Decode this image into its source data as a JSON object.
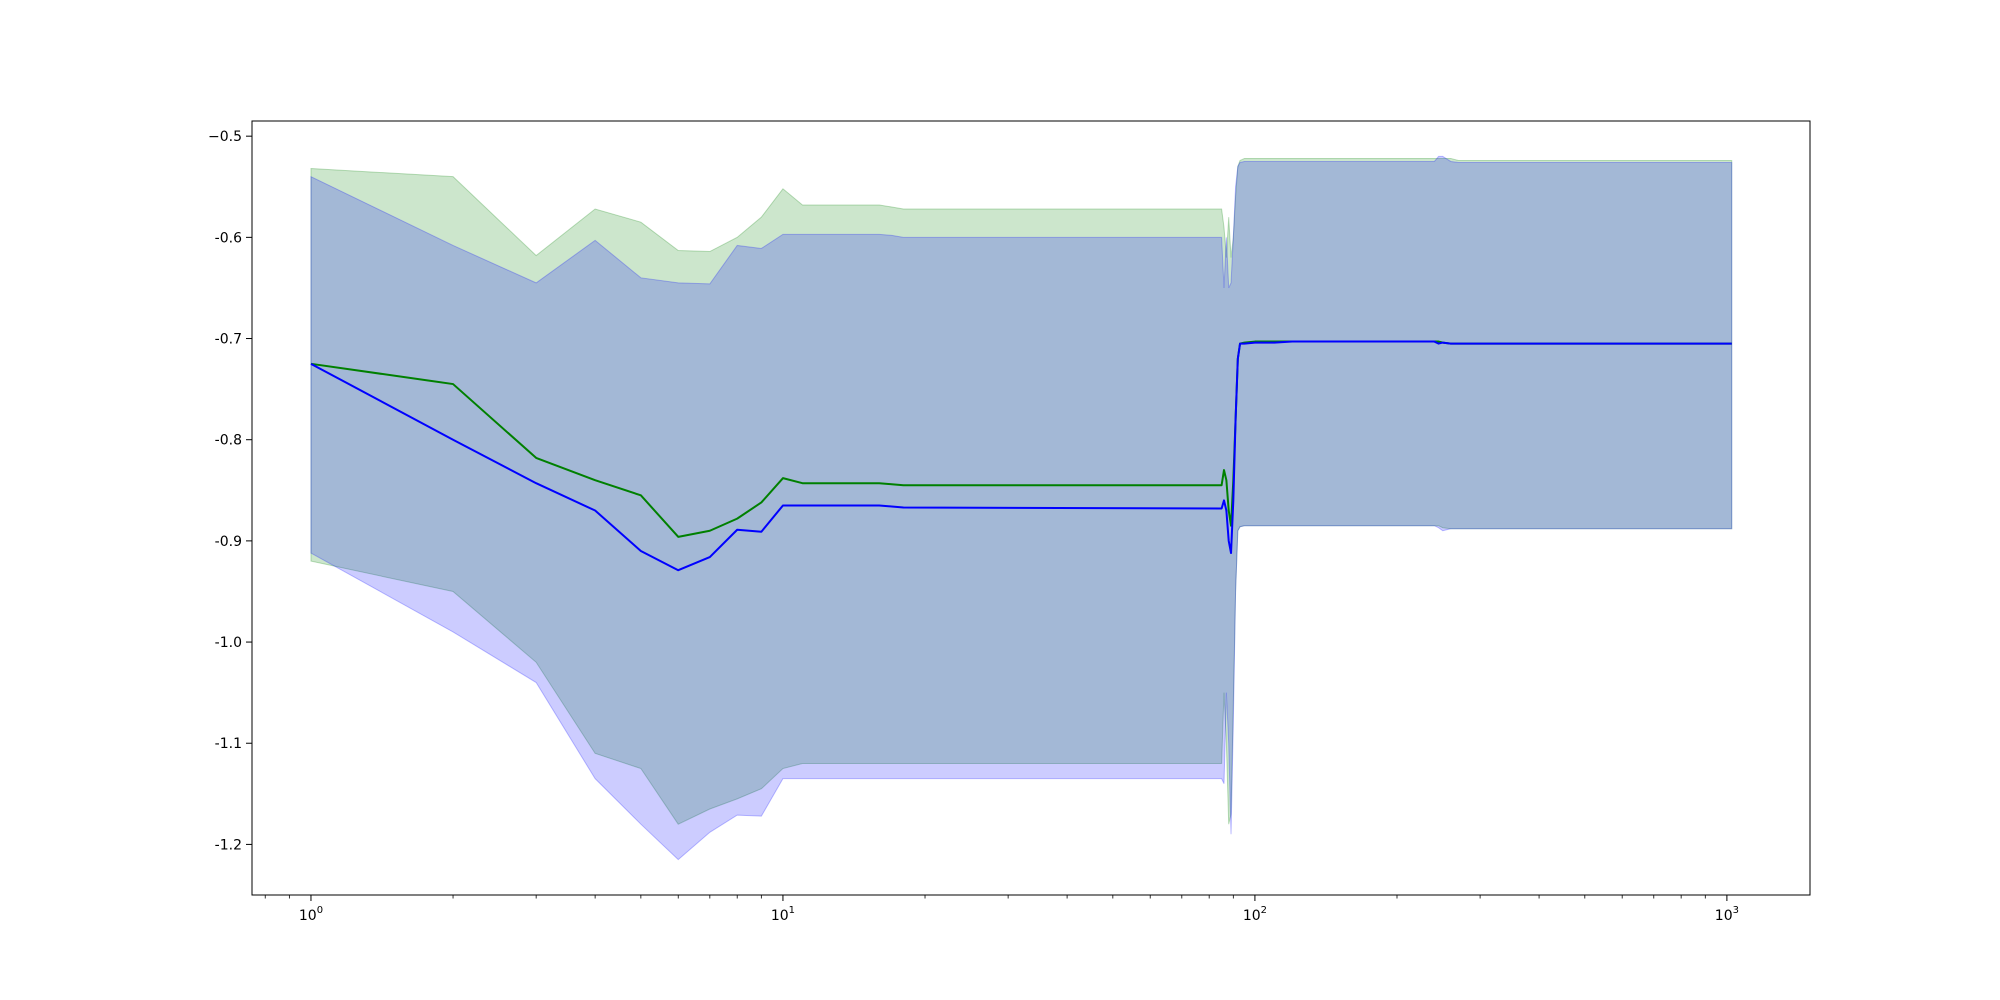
{
  "chart_data": {
    "type": "line",
    "xscale": "log",
    "xlim": [
      0.75,
      1500
    ],
    "ylim": [
      -1.25,
      -0.485
    ],
    "grid": false,
    "legend": "none",
    "y_ticks": [
      -0.5,
      -0.6,
      -0.7,
      -0.8,
      -0.9,
      -1.0,
      -1.1,
      -1.2
    ],
    "y_tick_labels": [
      "−0.5",
      "-0.6",
      "-0.7",
      "-0.8",
      "-0.9",
      "-1.0",
      "-1.1",
      "-1.2"
    ],
    "x_ticks": [
      {
        "value": 1,
        "base": "10",
        "exp": "0"
      },
      {
        "value": 10,
        "base": "10",
        "exp": "1"
      },
      {
        "value": 100,
        "base": "10",
        "exp": "2"
      },
      {
        "value": 1000,
        "base": "10",
        "exp": "3"
      }
    ],
    "series": [
      {
        "color": "#008000",
        "band_color": "#008000",
        "band_opacity": 0.2,
        "x": [
          1,
          2,
          3,
          4,
          5,
          6,
          7,
          8,
          9,
          10,
          11,
          16,
          17,
          18,
          85,
          86,
          87,
          88,
          89,
          90,
          91,
          92,
          93,
          95,
          100,
          110,
          120,
          200,
          240,
          245,
          250,
          260,
          270,
          1024
        ],
        "mean": [
          -0.725,
          -0.745,
          -0.818,
          -0.84,
          -0.855,
          -0.896,
          -0.89,
          -0.878,
          -0.862,
          -0.838,
          -0.843,
          -0.843,
          -0.844,
          -0.845,
          -0.845,
          -0.83,
          -0.84,
          -0.87,
          -0.885,
          -0.84,
          -0.78,
          -0.72,
          -0.705,
          -0.704,
          -0.703,
          -0.703,
          -0.703,
          -0.703,
          -0.703,
          -0.703,
          -0.704,
          -0.705,
          -0.705,
          -0.705
        ],
        "upper": [
          -0.532,
          -0.54,
          -0.618,
          -0.572,
          -0.585,
          -0.613,
          -0.614,
          -0.6,
          -0.58,
          -0.552,
          -0.568,
          -0.568,
          -0.57,
          -0.572,
          -0.572,
          -0.59,
          -0.62,
          -0.58,
          -0.62,
          -0.6,
          -0.56,
          -0.53,
          -0.524,
          -0.522,
          -0.522,
          -0.522,
          -0.522,
          -0.522,
          -0.522,
          -0.522,
          -0.522,
          -0.522,
          -0.524,
          -0.524
        ],
        "lower": [
          -0.92,
          -0.95,
          -1.02,
          -1.11,
          -1.125,
          -1.18,
          -1.165,
          -1.155,
          -1.145,
          -1.125,
          -1.12,
          -1.12,
          -1.12,
          -1.12,
          -1.12,
          -1.05,
          -1.1,
          -1.18,
          -1.17,
          -1.06,
          -0.95,
          -0.89,
          -0.886,
          -0.885,
          -0.885,
          -0.885,
          -0.885,
          -0.885,
          -0.885,
          -0.885,
          -0.887,
          -0.888,
          -0.888,
          -0.888
        ]
      },
      {
        "color": "#0000ff",
        "band_color": "#0000ff",
        "band_opacity": 0.2,
        "x": [
          1,
          2,
          3,
          4,
          5,
          6,
          7,
          8,
          9,
          10,
          11,
          16,
          17,
          18,
          85,
          86,
          87,
          88,
          89,
          90,
          91,
          92,
          93,
          95,
          100,
          110,
          120,
          200,
          240,
          245,
          250,
          260,
          270,
          1024
        ],
        "mean": [
          -0.725,
          -0.8,
          -0.843,
          -0.87,
          -0.91,
          -0.929,
          -0.916,
          -0.889,
          -0.891,
          -0.865,
          -0.865,
          -0.865,
          -0.866,
          -0.867,
          -0.868,
          -0.86,
          -0.87,
          -0.9,
          -0.912,
          -0.86,
          -0.78,
          -0.72,
          -0.705,
          -0.705,
          -0.704,
          -0.704,
          -0.703,
          -0.703,
          -0.703,
          -0.705,
          -0.704,
          -0.705,
          -0.705,
          -0.705
        ],
        "upper": [
          -0.54,
          -0.608,
          -0.645,
          -0.603,
          -0.64,
          -0.645,
          -0.646,
          -0.608,
          -0.611,
          -0.597,
          -0.597,
          -0.597,
          -0.598,
          -0.6,
          -0.6,
          -0.65,
          -0.6,
          -0.65,
          -0.645,
          -0.6,
          -0.55,
          -0.53,
          -0.526,
          -0.525,
          -0.525,
          -0.525,
          -0.525,
          -0.525,
          -0.525,
          -0.52,
          -0.52,
          -0.525,
          -0.526,
          -0.526
        ],
        "lower": [
          -0.912,
          -0.99,
          -1.04,
          -1.135,
          -1.18,
          -1.215,
          -1.188,
          -1.171,
          -1.172,
          -1.135,
          -1.135,
          -1.135,
          -1.135,
          -1.135,
          -1.135,
          -1.14,
          -1.05,
          -1.1,
          -1.19,
          -1.08,
          -0.95,
          -0.89,
          -0.886,
          -0.885,
          -0.885,
          -0.885,
          -0.885,
          -0.885,
          -0.885,
          -0.887,
          -0.89,
          -0.888,
          -0.888,
          -0.888
        ]
      }
    ]
  }
}
